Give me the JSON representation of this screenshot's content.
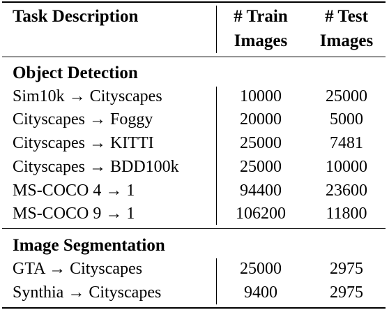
{
  "header": {
    "task_description": "Task Description",
    "train_line1": "# Train",
    "train_line2": "Images",
    "test_line1": "# Test",
    "test_line2": "Images"
  },
  "sections": [
    {
      "title": "Object Detection",
      "rows": [
        {
          "task": "Sim10k → Cityscapes",
          "train": "10000",
          "test": "25000"
        },
        {
          "task": "Cityscapes → Foggy",
          "train": "20000",
          "test": "5000"
        },
        {
          "task": "Cityscapes → KITTI",
          "train": "25000",
          "test": "7481"
        },
        {
          "task": "Cityscapes → BDD100k",
          "train": "25000",
          "test": "10000"
        },
        {
          "task": "MS-COCO 4 → 1",
          "train": "94400",
          "test": "23600"
        },
        {
          "task": "MS-COCO 9 → 1",
          "train": "106200",
          "test": "11800"
        }
      ]
    },
    {
      "title": "Image Segmentation",
      "rows": [
        {
          "task": "GTA → Cityscapes",
          "train": "25000",
          "test": "2975"
        },
        {
          "task": "Synthia → Cityscapes",
          "train": "9400",
          "test": "2975"
        }
      ]
    }
  ]
}
